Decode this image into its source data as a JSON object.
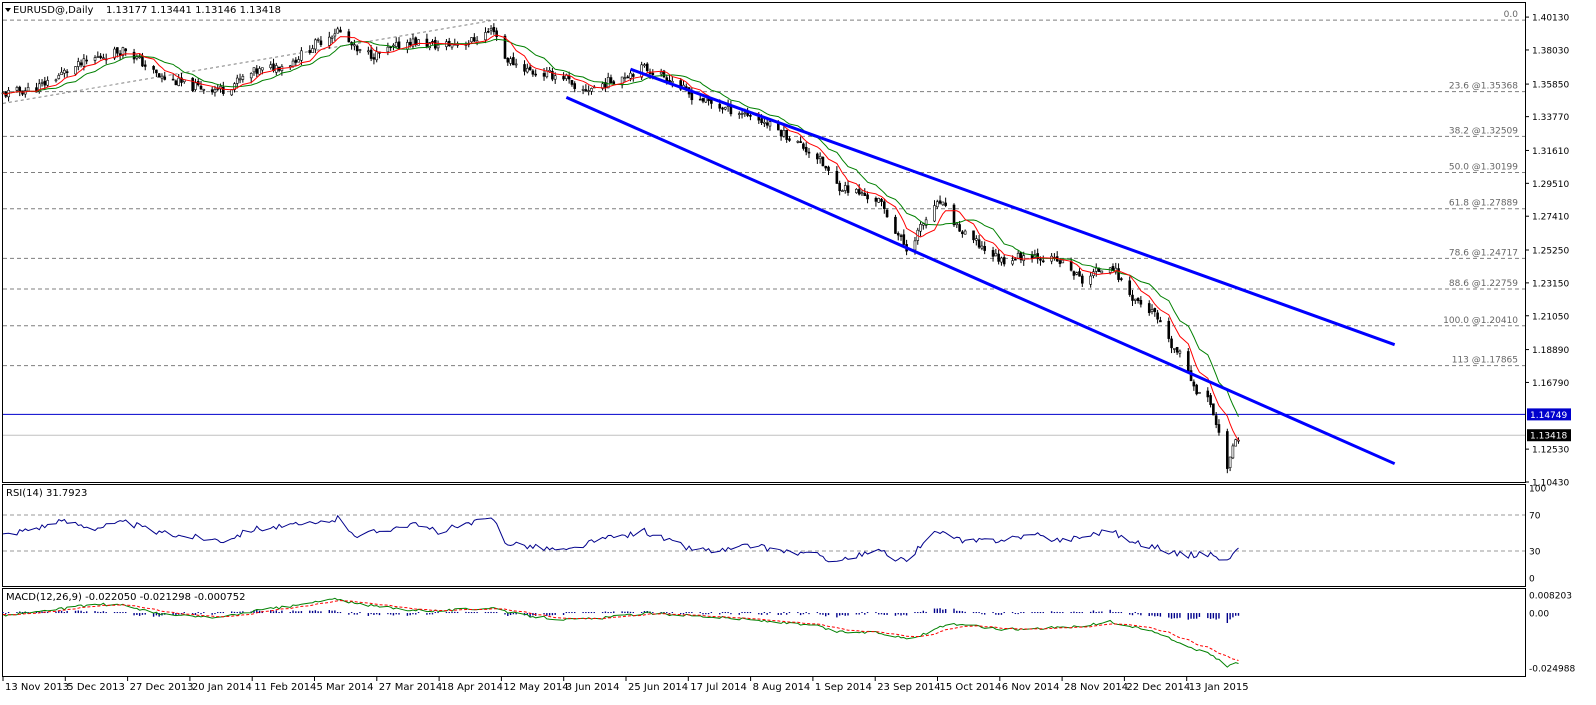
{
  "header": {
    "title": "EURUSD@,Daily",
    "ohlc": "1.13177 1.13441 1.13146 1.13418"
  },
  "colors": {
    "candle": "#000000",
    "channel": "#0000ff",
    "ma_fast": "#ff0000",
    "ma_slow": "#008000",
    "rsi": "#00008b",
    "macd_main": "#008000",
    "macd_signal": "#ff0000",
    "macd_hist": "#00008b",
    "support_line": "#0000cd",
    "current_price": "#000000"
  },
  "chart_data": [
    {
      "type": "candlestick",
      "name": "price",
      "ylim": [
        1.1043,
        1.4103
      ],
      "y_ticks": [
        "1.40130",
        "1.38030",
        "1.35850",
        "1.33770",
        "1.31610",
        "1.29510",
        "1.27410",
        "1.25250",
        "1.23150",
        "1.21050",
        "1.18890",
        "1.16790",
        "1.14749",
        "1.13418",
        "1.12530",
        "1.10430"
      ],
      "x_ticks": [
        "13 Nov 2013",
        "5 Dec 2013",
        "27 Dec 2013",
        "20 Jan 2014",
        "11 Feb 2014",
        "5 Mar 2014",
        "27 Mar 2014",
        "18 Apr 2014",
        "12 May 2014",
        "3 Jun 2014",
        "25 Jun 2014",
        "17 Jul 2014",
        "8 Aug 2014",
        "1 Sep 2014",
        "23 Sep 2014",
        "15 Oct 2014",
        "6 Nov 2014",
        "28 Nov 2014",
        "22 Dec 2014",
        "13 Jan 2015"
      ],
      "price_path": [
        [
          "2013-11-13",
          1.352
        ],
        [
          "2013-11-25",
          1.356
        ],
        [
          "2013-12-05",
          1.366
        ],
        [
          "2013-12-16",
          1.375
        ],
        [
          "2013-12-27",
          1.381
        ],
        [
          "2014-01-08",
          1.363
        ],
        [
          "2014-01-20",
          1.357
        ],
        [
          "2014-01-31",
          1.355
        ],
        [
          "2014-02-11",
          1.366
        ],
        [
          "2014-02-24",
          1.372
        ],
        [
          "2014-03-05",
          1.384
        ],
        [
          "2014-03-13",
          1.393
        ],
        [
          "2014-03-20",
          1.379
        ],
        [
          "2014-03-27",
          1.377
        ],
        [
          "2014-04-08",
          1.386
        ],
        [
          "2014-04-18",
          1.383
        ],
        [
          "2014-04-30",
          1.386
        ],
        [
          "2014-05-08",
          1.394
        ],
        [
          "2014-05-12",
          1.375
        ],
        [
          "2014-05-22",
          1.366
        ],
        [
          "2014-06-03",
          1.363
        ],
        [
          "2014-06-06",
          1.353
        ],
        [
          "2014-06-14",
          1.357
        ],
        [
          "2014-06-25",
          1.365
        ],
        [
          "2014-07-01",
          1.369
        ],
        [
          "2014-07-10",
          1.362
        ],
        [
          "2014-07-17",
          1.352
        ],
        [
          "2014-07-28",
          1.344
        ],
        [
          "2014-08-08",
          1.339
        ],
        [
          "2014-08-20",
          1.327
        ],
        [
          "2014-09-01",
          1.312
        ],
        [
          "2014-09-08",
          1.294
        ],
        [
          "2014-09-23",
          1.284
        ],
        [
          "2014-10-03",
          1.253
        ],
        [
          "2014-10-10",
          1.272
        ],
        [
          "2014-10-15",
          1.283
        ],
        [
          "2014-10-23",
          1.263
        ],
        [
          "2014-11-06",
          1.246
        ],
        [
          "2014-11-17",
          1.25
        ],
        [
          "2014-11-28",
          1.244
        ],
        [
          "2014-12-05",
          1.233
        ],
        [
          "2014-12-15",
          1.244
        ],
        [
          "2014-12-22",
          1.224
        ],
        [
          "2014-12-31",
          1.211
        ],
        [
          "2015-01-05",
          1.193
        ],
        [
          "2015-01-10",
          1.183
        ],
        [
          "2015-01-15",
          1.163
        ],
        [
          "2015-01-20",
          1.155
        ],
        [
          "2015-01-23",
          1.135
        ],
        [
          "2015-01-26",
          1.115
        ],
        [
          "2015-01-29",
          1.13
        ],
        [
          "2015-01-30",
          1.134
        ]
      ],
      "fibonacci": [
        {
          "ratio": "0.0",
          "price": 1.39934,
          "text": "0.0"
        },
        {
          "ratio": "23.6",
          "price": 1.35368,
          "text": "23.6   @1.35368"
        },
        {
          "ratio": "38.2",
          "price": 1.32509,
          "text": "38.2   @1.32509"
        },
        {
          "ratio": "50.0",
          "price": 1.30199,
          "text": "50.0   @1.30199"
        },
        {
          "ratio": "61.8",
          "price": 1.27889,
          "text": "61.8   @1.27889"
        },
        {
          "ratio": "78.6",
          "price": 1.24717,
          "text": "78.6   @1.24717"
        },
        {
          "ratio": "88.6",
          "price": 1.22759,
          "text": "88.6   @1.22759"
        },
        {
          "ratio": "100.0",
          "price": 1.2041,
          "text": "100.0   @1.20410"
        },
        {
          "ratio": "113",
          "price": 1.17865,
          "text": "113   @1.17865"
        }
      ],
      "horizontal_line": {
        "price": 1.14749,
        "label": "1.14749"
      },
      "current_price": {
        "price": 1.13418,
        "label": "1.13418"
      },
      "channel": {
        "upper": [
          [
            "2014-06-26",
            1.368
          ],
          [
            "2015-03-27",
            1.192
          ]
        ],
        "lower": [
          [
            "2014-06-03",
            1.35
          ],
          [
            "2015-03-27",
            1.116
          ]
        ]
      },
      "trend_line": [
        [
          "2013-11-13",
          1.3462
        ],
        [
          "2014-05-08",
          1.3993
        ]
      ]
    },
    {
      "type": "line",
      "name": "RSI(14)",
      "title": "RSI(14) 31.7923",
      "ylim": [
        0,
        100
      ],
      "y_ticks": [
        "100",
        "70",
        "30",
        "0"
      ],
      "levels": [
        70,
        30
      ],
      "rsi_path": [
        [
          "2013-11-13",
          48
        ],
        [
          "2013-12-05",
          63
        ],
        [
          "2013-12-16",
          56
        ],
        [
          "2013-12-27",
          62
        ],
        [
          "2014-01-08",
          50
        ],
        [
          "2014-01-20",
          46
        ],
        [
          "2014-01-31",
          42
        ],
        [
          "2014-02-11",
          55
        ],
        [
          "2014-03-05",
          60
        ],
        [
          "2014-03-13",
          66
        ],
        [
          "2014-03-20",
          47
        ],
        [
          "2014-04-08",
          60
        ],
        [
          "2014-04-18",
          52
        ],
        [
          "2014-05-08",
          66
        ],
        [
          "2014-05-12",
          40
        ],
        [
          "2014-05-22",
          35
        ],
        [
          "2014-06-03",
          30
        ],
        [
          "2014-06-14",
          42
        ],
        [
          "2014-06-25",
          48
        ],
        [
          "2014-07-01",
          52
        ],
        [
          "2014-07-17",
          33
        ],
        [
          "2014-07-28",
          30
        ],
        [
          "2014-08-08",
          36
        ],
        [
          "2014-08-20",
          30
        ],
        [
          "2014-09-01",
          25
        ],
        [
          "2014-09-08",
          19
        ],
        [
          "2014-09-23",
          30
        ],
        [
          "2014-10-03",
          17
        ],
        [
          "2014-10-10",
          45
        ],
        [
          "2014-10-15",
          52
        ],
        [
          "2014-10-23",
          40
        ],
        [
          "2014-11-06",
          43
        ],
        [
          "2014-11-17",
          48
        ],
        [
          "2014-11-28",
          42
        ],
        [
          "2014-12-05",
          46
        ],
        [
          "2014-12-15",
          54
        ],
        [
          "2014-12-22",
          40
        ],
        [
          "2014-12-31",
          35
        ],
        [
          "2015-01-05",
          30
        ],
        [
          "2015-01-10",
          25
        ],
        [
          "2015-01-15",
          26
        ],
        [
          "2015-01-20",
          27
        ],
        [
          "2015-01-23",
          23
        ],
        [
          "2015-01-26",
          18
        ],
        [
          "2015-01-29",
          30
        ],
        [
          "2015-01-30",
          32
        ]
      ]
    },
    {
      "type": "line",
      "name": "MACD(12,26,9)",
      "title": "MACD(12,26,9) -0.022050 -0.021298 -0.000752",
      "ylim": [
        -0.024988,
        0.008203
      ],
      "y_ticks": [
        "0.008203",
        "0.00",
        "-0.024988"
      ],
      "macd_path": [
        [
          "2013-11-13",
          -0.001
        ],
        [
          "2013-12-05",
          0.002
        ],
        [
          "2013-12-16",
          0.004
        ],
        [
          "2013-12-27",
          0.0035
        ],
        [
          "2014-01-08",
          -0.0005
        ],
        [
          "2014-01-20",
          -0.0015
        ],
        [
          "2014-01-31",
          -0.002
        ],
        [
          "2014-02-11",
          0.001
        ],
        [
          "2014-02-24",
          0.003
        ],
        [
          "2014-03-05",
          0.005
        ],
        [
          "2014-03-13",
          0.0065
        ],
        [
          "2014-03-20",
          0.004
        ],
        [
          "2014-04-08",
          0.0015
        ],
        [
          "2014-04-18",
          0.001
        ],
        [
          "2014-05-08",
          0.0025
        ],
        [
          "2014-05-12",
          0.0005
        ],
        [
          "2014-05-22",
          -0.0015
        ],
        [
          "2014-06-03",
          -0.003
        ],
        [
          "2014-06-14",
          -0.0025
        ],
        [
          "2014-06-25",
          -0.001
        ],
        [
          "2014-07-01",
          0.0
        ],
        [
          "2014-07-17",
          -0.001
        ],
        [
          "2014-07-28",
          -0.002
        ],
        [
          "2014-08-08",
          -0.003
        ],
        [
          "2014-08-20",
          -0.0045
        ],
        [
          "2014-09-01",
          -0.006
        ],
        [
          "2014-09-08",
          -0.0085
        ],
        [
          "2014-09-23",
          -0.009
        ],
        [
          "2014-10-03",
          -0.0115
        ],
        [
          "2014-10-10",
          -0.0095
        ],
        [
          "2014-10-15",
          -0.006
        ],
        [
          "2014-10-23",
          -0.005
        ],
        [
          "2014-11-06",
          -0.0075
        ],
        [
          "2014-11-17",
          -0.007
        ],
        [
          "2014-11-28",
          -0.0065
        ],
        [
          "2014-12-05",
          -0.006
        ],
        [
          "2014-12-15",
          -0.004
        ],
        [
          "2014-12-22",
          -0.006
        ],
        [
          "2014-12-31",
          -0.0085
        ],
        [
          "2015-01-05",
          -0.0115
        ],
        [
          "2015-01-10",
          -0.014
        ],
        [
          "2015-01-15",
          -0.0165
        ],
        [
          "2015-01-20",
          -0.019
        ],
        [
          "2015-01-23",
          -0.0215
        ],
        [
          "2015-01-26",
          -0.024
        ],
        [
          "2015-01-30",
          -0.0225
        ]
      ]
    }
  ]
}
